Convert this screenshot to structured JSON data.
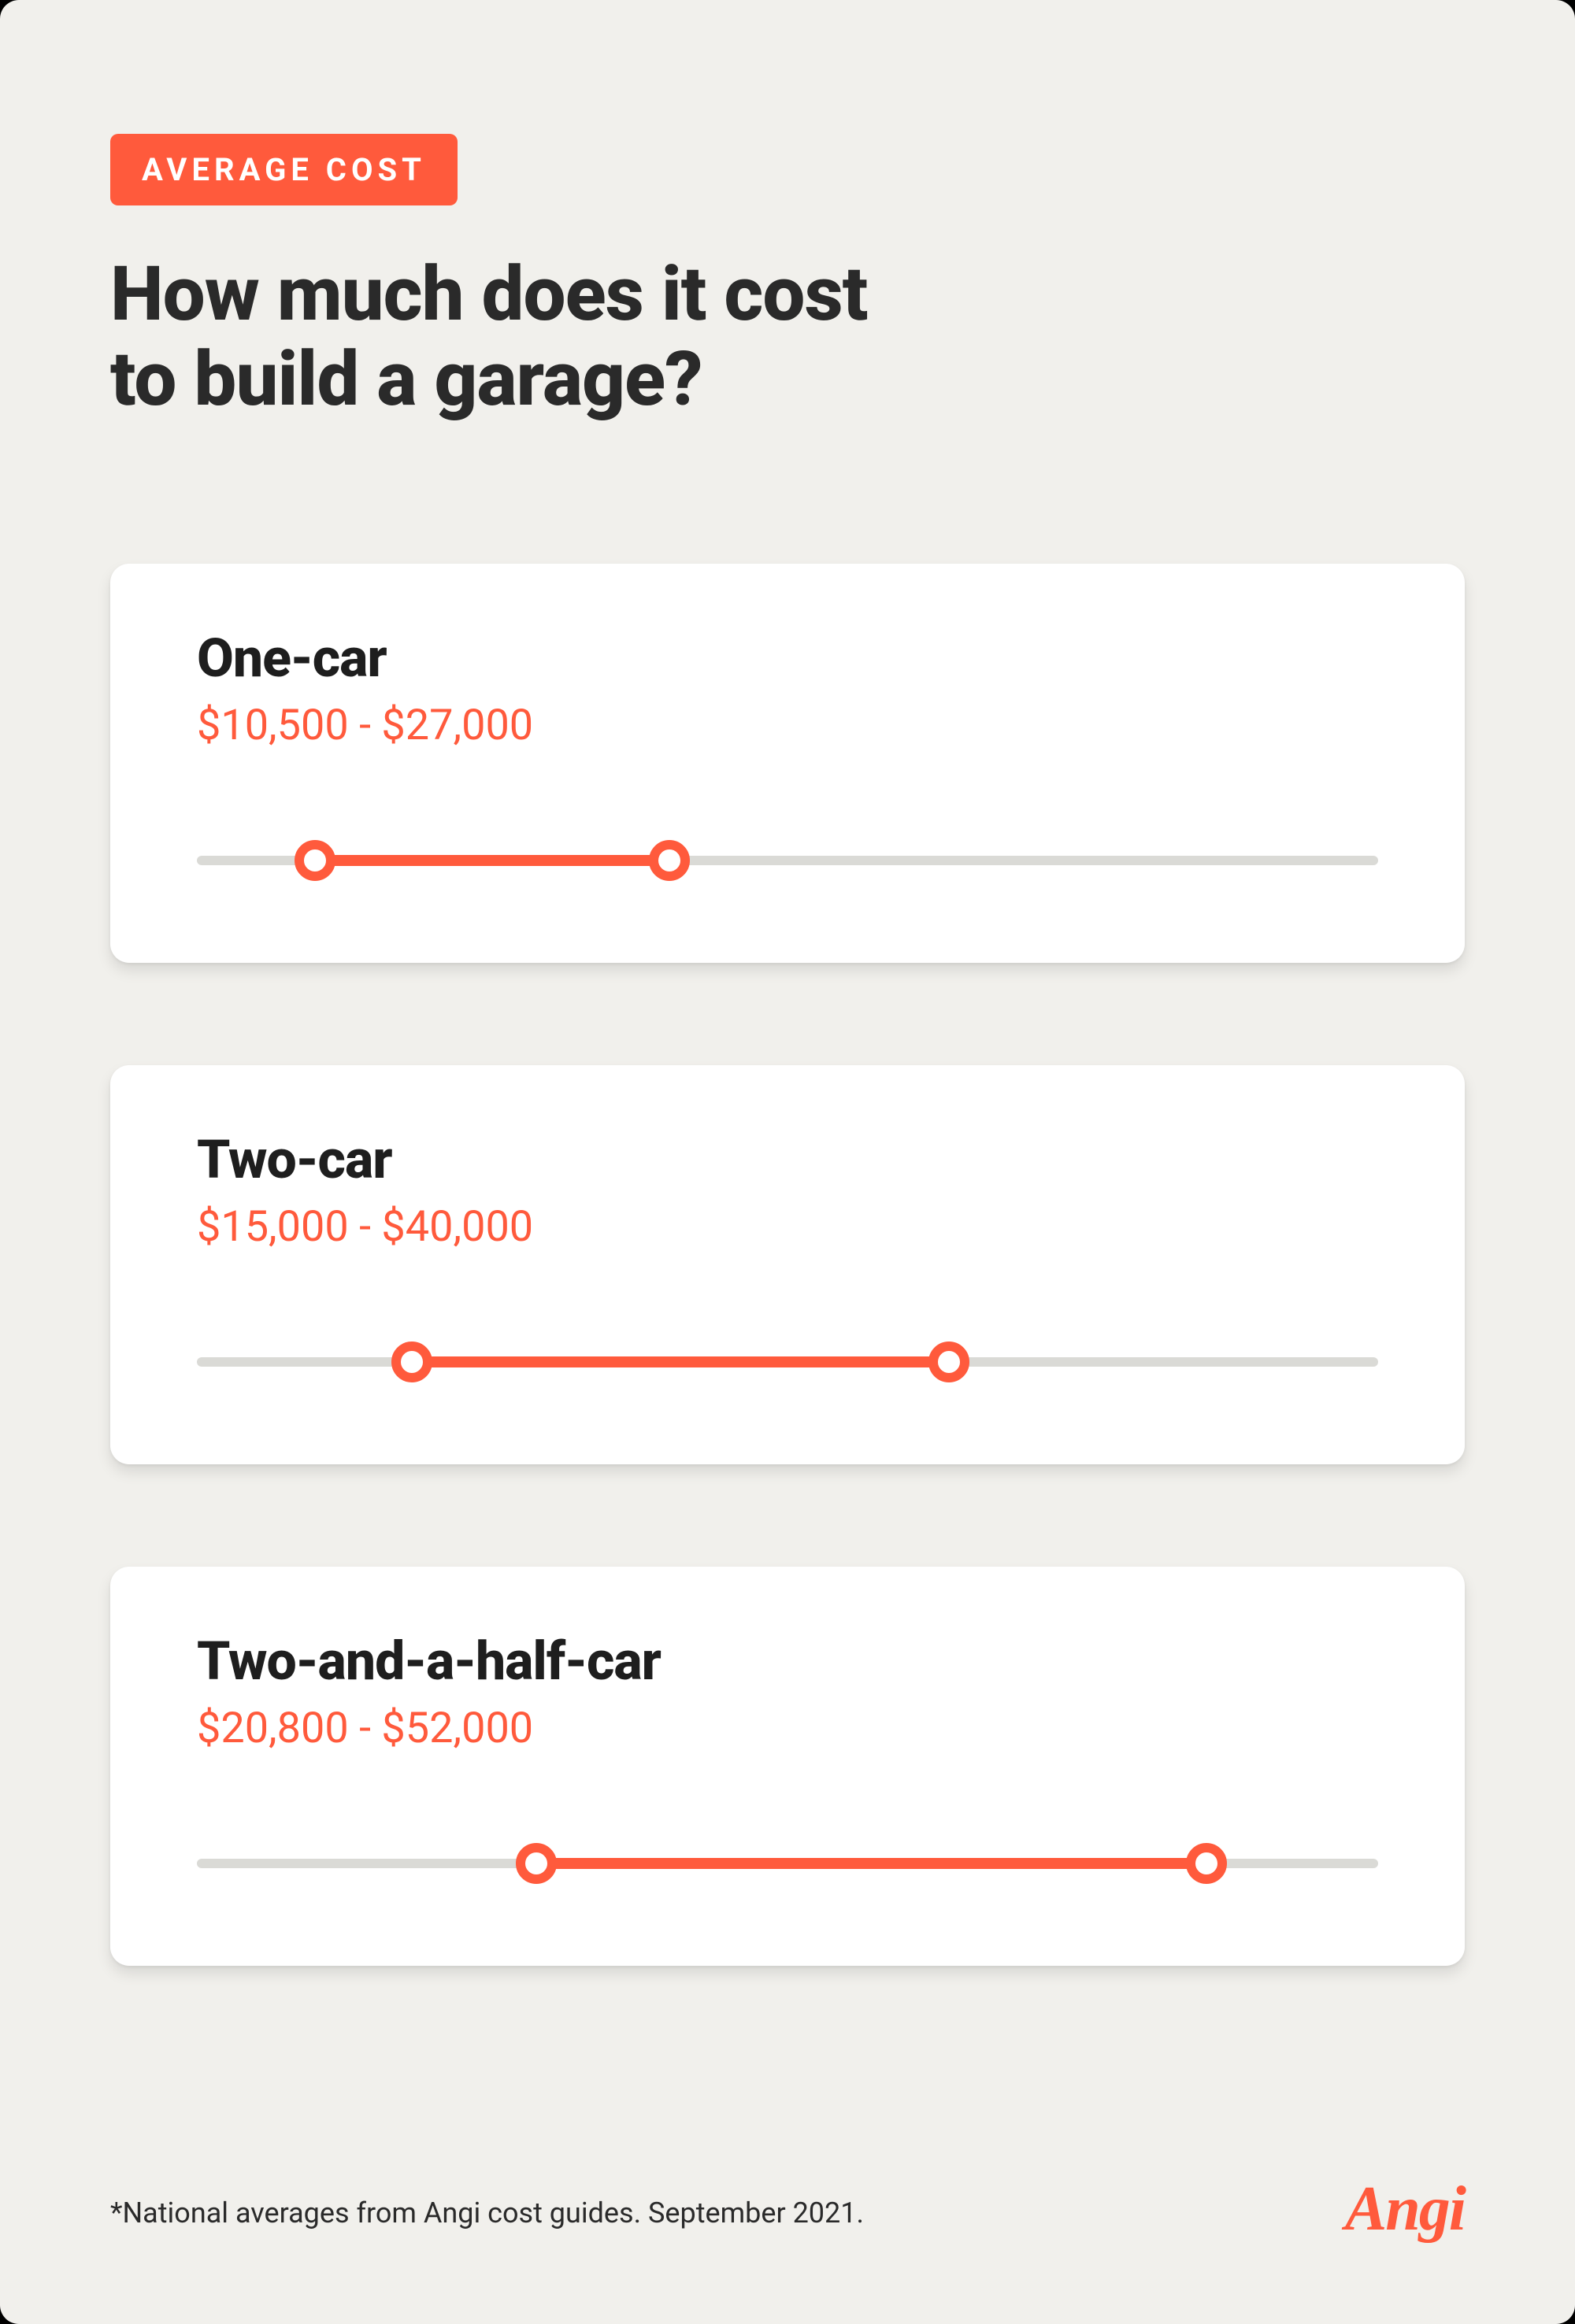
{
  "colors": {
    "page_bg": "#f1f0ec",
    "badge_bg": "#ff5a3c",
    "badge_text": "#ffffff",
    "title_text": "#2a2a2a",
    "card_bg": "#ffffff",
    "card_title": "#1e1e1e",
    "range_text": "#ff5a3c",
    "track": "#dadad6",
    "fill": "#ff5a3c",
    "handle_border": "#ff5a3c",
    "handle_fill": "#ffffff",
    "footnote": "#2a2a2a",
    "logo": "#ff5a3c"
  },
  "badge": {
    "label": "AVERAGE COST"
  },
  "title": {
    "line1": "How much does it cost",
    "line2": "to build a garage?"
  },
  "scale": {
    "min": 5000,
    "max": 60000
  },
  "cards": [
    {
      "title": "One-car",
      "range_label": "$10,500 - $27,000",
      "low": 10500,
      "high": 27000
    },
    {
      "title": "Two-car",
      "range_label": "$15,000 - $40,000",
      "low": 15000,
      "high": 40000
    },
    {
      "title": "Two-and-a-half-car",
      "range_label": "$20,800 - $52,000",
      "low": 20800,
      "high": 52000
    }
  ],
  "footnote": "*National averages from Angi cost guides. September 2021.",
  "logo": "Angi"
}
